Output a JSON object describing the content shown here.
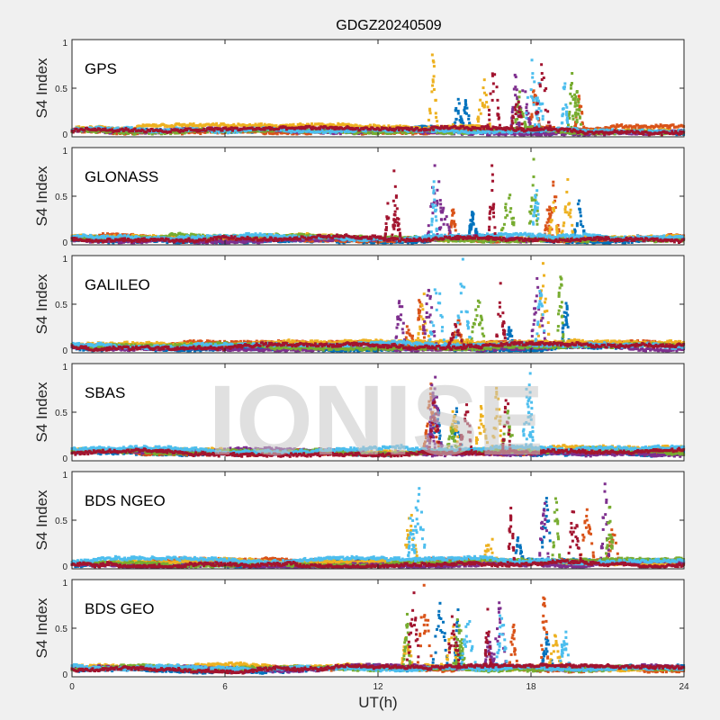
{
  "chart_data": {
    "type": "scatter",
    "title": "GDGZ20240509",
    "xlabel": "UT(h)",
    "ylabel": "S4 Index",
    "xlim": [
      0,
      24
    ],
    "ylim": [
      0,
      1
    ],
    "xticks": [
      "0",
      "6",
      "12",
      "18",
      "24"
    ],
    "yticks": [
      "0",
      "0.5",
      "1"
    ],
    "watermark": "IONISE",
    "series_colors": [
      "#0072BD",
      "#D95319",
      "#EDB120",
      "#7E2F8E",
      "#77AC30",
      "#4DBEEE",
      "#A2142F"
    ],
    "panels": [
      {
        "label": "GPS",
        "baseline": 0.07,
        "active_window_h": [
          14.0,
          20.5
        ],
        "peak_s4": 1.0
      },
      {
        "label": "GLONASS",
        "baseline": 0.07,
        "active_window_h": [
          12.5,
          20.0
        ],
        "peak_s4": 1.0
      },
      {
        "label": "GALILEO",
        "baseline": 0.07,
        "active_window_h": [
          12.8,
          19.5
        ],
        "peak_s4": 1.0
      },
      {
        "label": "SBAS",
        "baseline": 0.1,
        "active_window_h": [
          13.5,
          18.5
        ],
        "peak_s4": 0.95
      },
      {
        "label": "BDS NGEO",
        "baseline": 0.06,
        "active_window_h": [
          12.0,
          21.5
        ],
        "peak_s4": 1.0
      },
      {
        "label": "BDS GEO",
        "baseline": 0.09,
        "active_window_h": [
          13.0,
          20.0
        ],
        "peak_s4": 0.98
      }
    ]
  }
}
